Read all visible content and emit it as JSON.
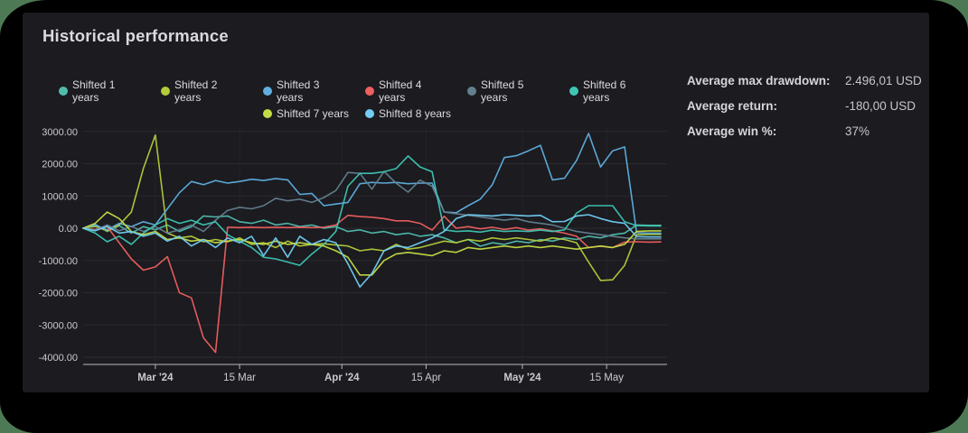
{
  "window": {
    "title": "Historical performance"
  },
  "stats": [
    {
      "label": "Average max drawdown:",
      "value": "2.496,01 USD"
    },
    {
      "label": "Average return:",
      "value": "-180,00 USD"
    },
    {
      "label": "Average win %:",
      "value": "37%"
    }
  ],
  "chart_data": {
    "type": "line",
    "title": "Historical performance",
    "ylabel": "",
    "xlabel": "",
    "ylim": [
      -4000,
      3000
    ],
    "grid": true,
    "legend_position": "top-center",
    "sample_step_days": 2,
    "y_ticks": [
      {
        "label": "3000.00",
        "value": 3000
      },
      {
        "label": "2000.00",
        "value": 2000
      },
      {
        "label": "1000.00",
        "value": 1000
      },
      {
        "label": "0.00",
        "value": 0
      },
      {
        "label": "-1000.00",
        "value": -1000
      },
      {
        "label": "-2000.00",
        "value": -2000
      },
      {
        "label": "-3000.00",
        "value": -3000
      },
      {
        "label": "-4000.00",
        "value": -4000
      }
    ],
    "x_ticks": [
      {
        "label": "Mar '24",
        "day": 12,
        "bold": true
      },
      {
        "label": "15 Mar",
        "day": 26,
        "bold": false
      },
      {
        "label": "Apr '24",
        "day": 43,
        "bold": true
      },
      {
        "label": "15 Apr",
        "day": 57,
        "bold": false
      },
      {
        "label": "May '24",
        "day": 73,
        "bold": true
      },
      {
        "label": "15 May",
        "day": 87,
        "bold": false
      }
    ],
    "series": [
      {
        "name": "Shifted 1 years",
        "color": "#4fbdae",
        "values": [
          0,
          120,
          -100,
          80,
          -150,
          50,
          -50,
          100,
          -100,
          50,
          380,
          350,
          380,
          200,
          150,
          250,
          100,
          150,
          50,
          100,
          0,
          50,
          -100,
          -50,
          -150,
          -100,
          -200,
          -150,
          -250,
          -200,
          -300,
          -450,
          -350,
          -560,
          -450,
          -500,
          -400,
          -450,
          -350,
          -400,
          -300,
          -350,
          -250,
          -300,
          -200,
          -150,
          100,
          90,
          90
        ]
      },
      {
        "name": "Shifted 2 years",
        "color": "#b3cc3a",
        "values": [
          0,
          60,
          -80,
          100,
          500,
          1850,
          2890,
          -150,
          -300,
          -250,
          -420,
          -350,
          -420,
          -300,
          -500,
          -450,
          -600,
          -400,
          -550,
          -500,
          -480,
          -520,
          -550,
          -700,
          -650,
          -700,
          -500,
          -650,
          -600,
          -500,
          -400,
          -450,
          -350,
          -400,
          -300,
          -350,
          -300,
          -350,
          -400,
          -300,
          -350,
          -450,
          -1050,
          -1620,
          -1600,
          -1150,
          -200,
          -190,
          -190
        ]
      },
      {
        "name": "Shifted 3 years",
        "color": "#5fb0e0",
        "values": [
          0,
          100,
          -50,
          150,
          50,
          200,
          100,
          600,
          1100,
          1450,
          1350,
          1480,
          1400,
          1450,
          1520,
          1480,
          1540,
          1500,
          1050,
          1080,
          700,
          750,
          800,
          1380,
          1420,
          1400,
          1420,
          1380,
          1400,
          1400,
          500,
          480,
          700,
          900,
          1350,
          2190,
          2250,
          2400,
          2570,
          1500,
          1550,
          2100,
          2940,
          1900,
          2400,
          2520,
          -140,
          -150,
          -150
        ]
      },
      {
        "name": "Shifted 4 years",
        "color": "#ee5f5f",
        "values": [
          0,
          -40,
          50,
          -450,
          -950,
          -1300,
          -1200,
          -880,
          -2000,
          -2160,
          -3400,
          -3850,
          30,
          20,
          30,
          20,
          30,
          20,
          30,
          20,
          30,
          100,
          400,
          360,
          340,
          300,
          230,
          230,
          150,
          -60,
          370,
          0,
          50,
          -20,
          30,
          -40,
          20,
          -60,
          -20,
          -80,
          -150,
          -250,
          -600,
          -560,
          -600,
          -430,
          -420,
          -430,
          -425
        ]
      },
      {
        "name": "Shifted 5 years",
        "color": "#64808e",
        "values": [
          0,
          -60,
          100,
          -80,
          60,
          -100,
          50,
          -150,
          -50,
          100,
          -100,
          250,
          550,
          650,
          600,
          700,
          930,
          850,
          900,
          800,
          950,
          1170,
          1730,
          1700,
          1210,
          1760,
          1400,
          1120,
          1490,
          1300,
          500,
          450,
          400,
          350,
          300,
          250,
          300,
          200,
          150,
          100,
          0,
          -100,
          -150,
          -200,
          -250,
          -300,
          -330,
          -330,
          -330
        ]
      },
      {
        "name": "Shifted 6 years",
        "color": "#3fc6b3",
        "values": [
          0,
          -150,
          -420,
          -250,
          -500,
          -150,
          100,
          300,
          150,
          250,
          100,
          200,
          -200,
          -400,
          -600,
          -900,
          -950,
          -1050,
          -1150,
          -800,
          -500,
          -100,
          1300,
          1700,
          1700,
          1750,
          1850,
          2240,
          1900,
          1750,
          -50,
          -100,
          -80,
          -120,
          -60,
          -100,
          -80,
          -100,
          -60,
          -100,
          -50,
          470,
          700,
          700,
          700,
          200,
          80,
          70,
          70
        ]
      },
      {
        "name": "Shifted 7 years",
        "color": "#c4dd45",
        "values": [
          0,
          150,
          500,
          300,
          -100,
          -200,
          -100,
          -350,
          -300,
          -400,
          -350,
          -450,
          -400,
          -350,
          -450,
          -500,
          -400,
          -500,
          -450,
          -500,
          -550,
          -700,
          -900,
          -1450,
          -1450,
          -1000,
          -800,
          -750,
          -800,
          -850,
          -700,
          -750,
          -600,
          -650,
          -600,
          -550,
          -600,
          -550,
          -600,
          -550,
          -600,
          -650,
          -600,
          -550,
          -600,
          -500,
          -100,
          -80,
          -80
        ]
      },
      {
        "name": "Shifted 8 years",
        "color": "#72cdf4",
        "values": [
          0,
          -80,
          60,
          -150,
          -100,
          -250,
          -150,
          -400,
          -250,
          -550,
          -350,
          -600,
          -300,
          -450,
          -250,
          -850,
          -300,
          -900,
          -250,
          -500,
          -350,
          -450,
          -1100,
          -1820,
          -1400,
          -700,
          -550,
          -600,
          -450,
          -300,
          -100,
          300,
          420,
          400,
          380,
          420,
          400,
          380,
          400,
          200,
          210,
          380,
          420,
          300,
          200,
          150,
          -260,
          -270,
          -270
        ]
      }
    ],
    "colors": {
      "card_bg": "#1b1b20",
      "outer_bg": "#000000",
      "corner_accent": "#4d7a54",
      "gridline": "#2b2b30",
      "vertical_gridline": "#232329",
      "axis_line": "#b9b9bf",
      "tick_text": "#c9c9ce"
    }
  }
}
